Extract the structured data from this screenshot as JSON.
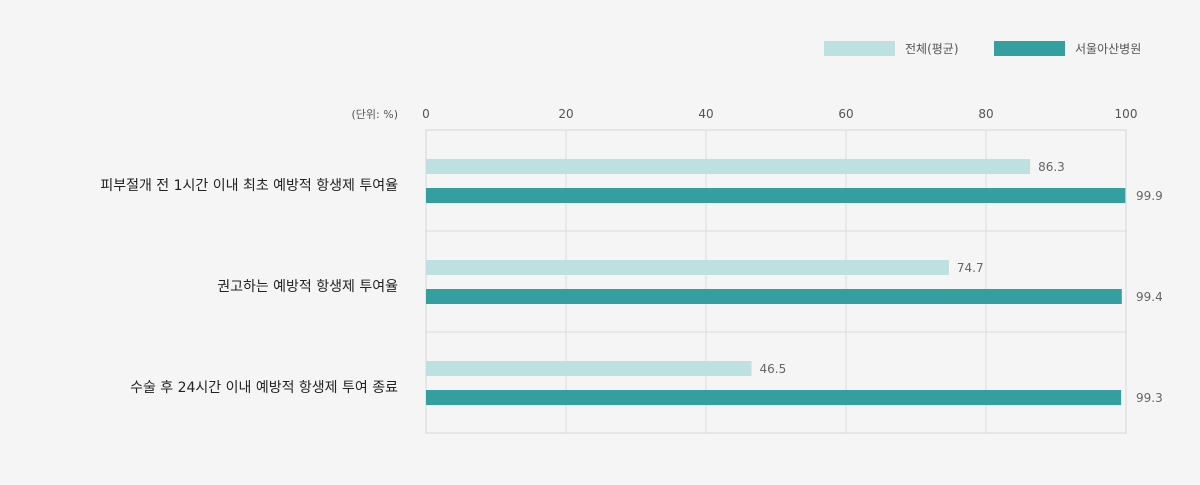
{
  "chart_data": {
    "type": "bar",
    "orientation": "horizontal",
    "unit_label": "(단위: %)",
    "categories": [
      "피부절개 전 1시간 이내 최초 예방적 항생제 투여율",
      "권고하는 예방적 항생제 투여율",
      "수술 후 24시간 이내 예방적 항생제 투여 종료"
    ],
    "series": [
      {
        "name": "전체(평균)",
        "color": "#bde0e1",
        "values": [
          86.3,
          74.7,
          46.5
        ]
      },
      {
        "name": "서울아산병원",
        "color": "#339f9f",
        "values": [
          99.9,
          99.4,
          99.3
        ]
      }
    ],
    "xlim": [
      0,
      100
    ],
    "xticks": [
      0,
      20,
      40,
      60,
      80,
      100
    ],
    "grid": true,
    "legend_position": "top-right"
  }
}
